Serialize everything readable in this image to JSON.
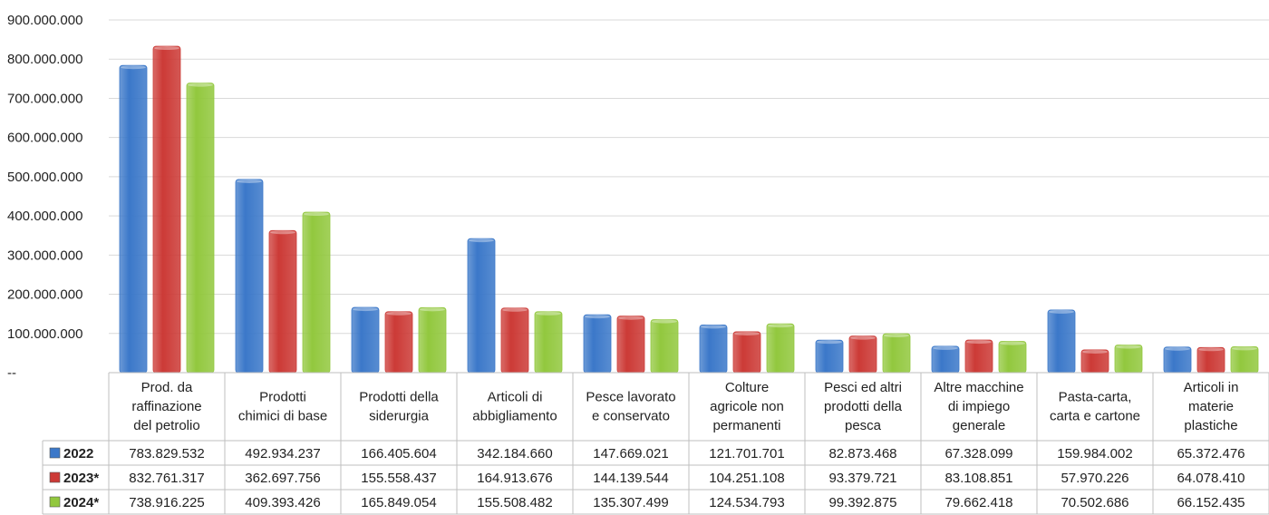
{
  "chart_data": {
    "type": "bar",
    "categories": [
      [
        "Prod. da",
        "raffinazione",
        "del petrolio"
      ],
      [
        "Prodotti",
        "chimici di base"
      ],
      [
        "Prodotti della",
        "siderurgia"
      ],
      [
        "Articoli di",
        "abbigliamento"
      ],
      [
        "Pesce lavorato",
        "e conservato"
      ],
      [
        "Colture",
        "agricole non",
        "permanenti"
      ],
      [
        "Pesci ed altri",
        "prodotti della",
        "pesca"
      ],
      [
        "Altre macchine",
        "di impiego",
        "generale"
      ],
      [
        "Pasta-carta,",
        "carta e cartone"
      ],
      [
        "Articoli in",
        "materie",
        "plastiche"
      ]
    ],
    "series": [
      {
        "name": "2022",
        "color": "#3b78c9",
        "values": [
          783829532,
          492934237,
          166405604,
          342184660,
          147669021,
          121701701,
          82873468,
          67328099,
          159984002,
          65372476
        ],
        "labels": [
          "783.829.532",
          "492.934.237",
          "166.405.604",
          "342.184.660",
          "147.669.021",
          "121.701.701",
          "82.873.468",
          "67.328.099",
          "159.984.002",
          "65.372.476"
        ]
      },
      {
        "name": "2023*",
        "color": "#cc3a36",
        "values": [
          832761317,
          362697756,
          155558437,
          164913676,
          144139544,
          104251108,
          93379721,
          83108851,
          57970226,
          64078410
        ],
        "labels": [
          "832.761.317",
          "362.697.756",
          "155.558.437",
          "164.913.676",
          "144.139.544",
          "104.251.108",
          "93.379.721",
          "83.108.851",
          "57.970.226",
          "64.078.410"
        ]
      },
      {
        "name": "2024*",
        "color": "#92c83e",
        "values": [
          738916225,
          409393426,
          165849054,
          155508482,
          135307499,
          124534793,
          99392875,
          79662418,
          70502686,
          66152435
        ],
        "labels": [
          "738.916.225",
          "409.393.426",
          "165.849.054",
          "155.508.482",
          "135.307.499",
          "124.534.793",
          "99.392.875",
          "79.662.418",
          "70.502.686",
          "66.152.435"
        ]
      }
    ],
    "y_ticks": [
      "--",
      "100.000.000",
      "200.000.000",
      "300.000.000",
      "400.000.000",
      "500.000.000",
      "600.000.000",
      "700.000.000",
      "800.000.000",
      "900.000.000"
    ],
    "ylim": [
      0,
      900000000
    ],
    "grid": true,
    "legend": "data-table"
  }
}
